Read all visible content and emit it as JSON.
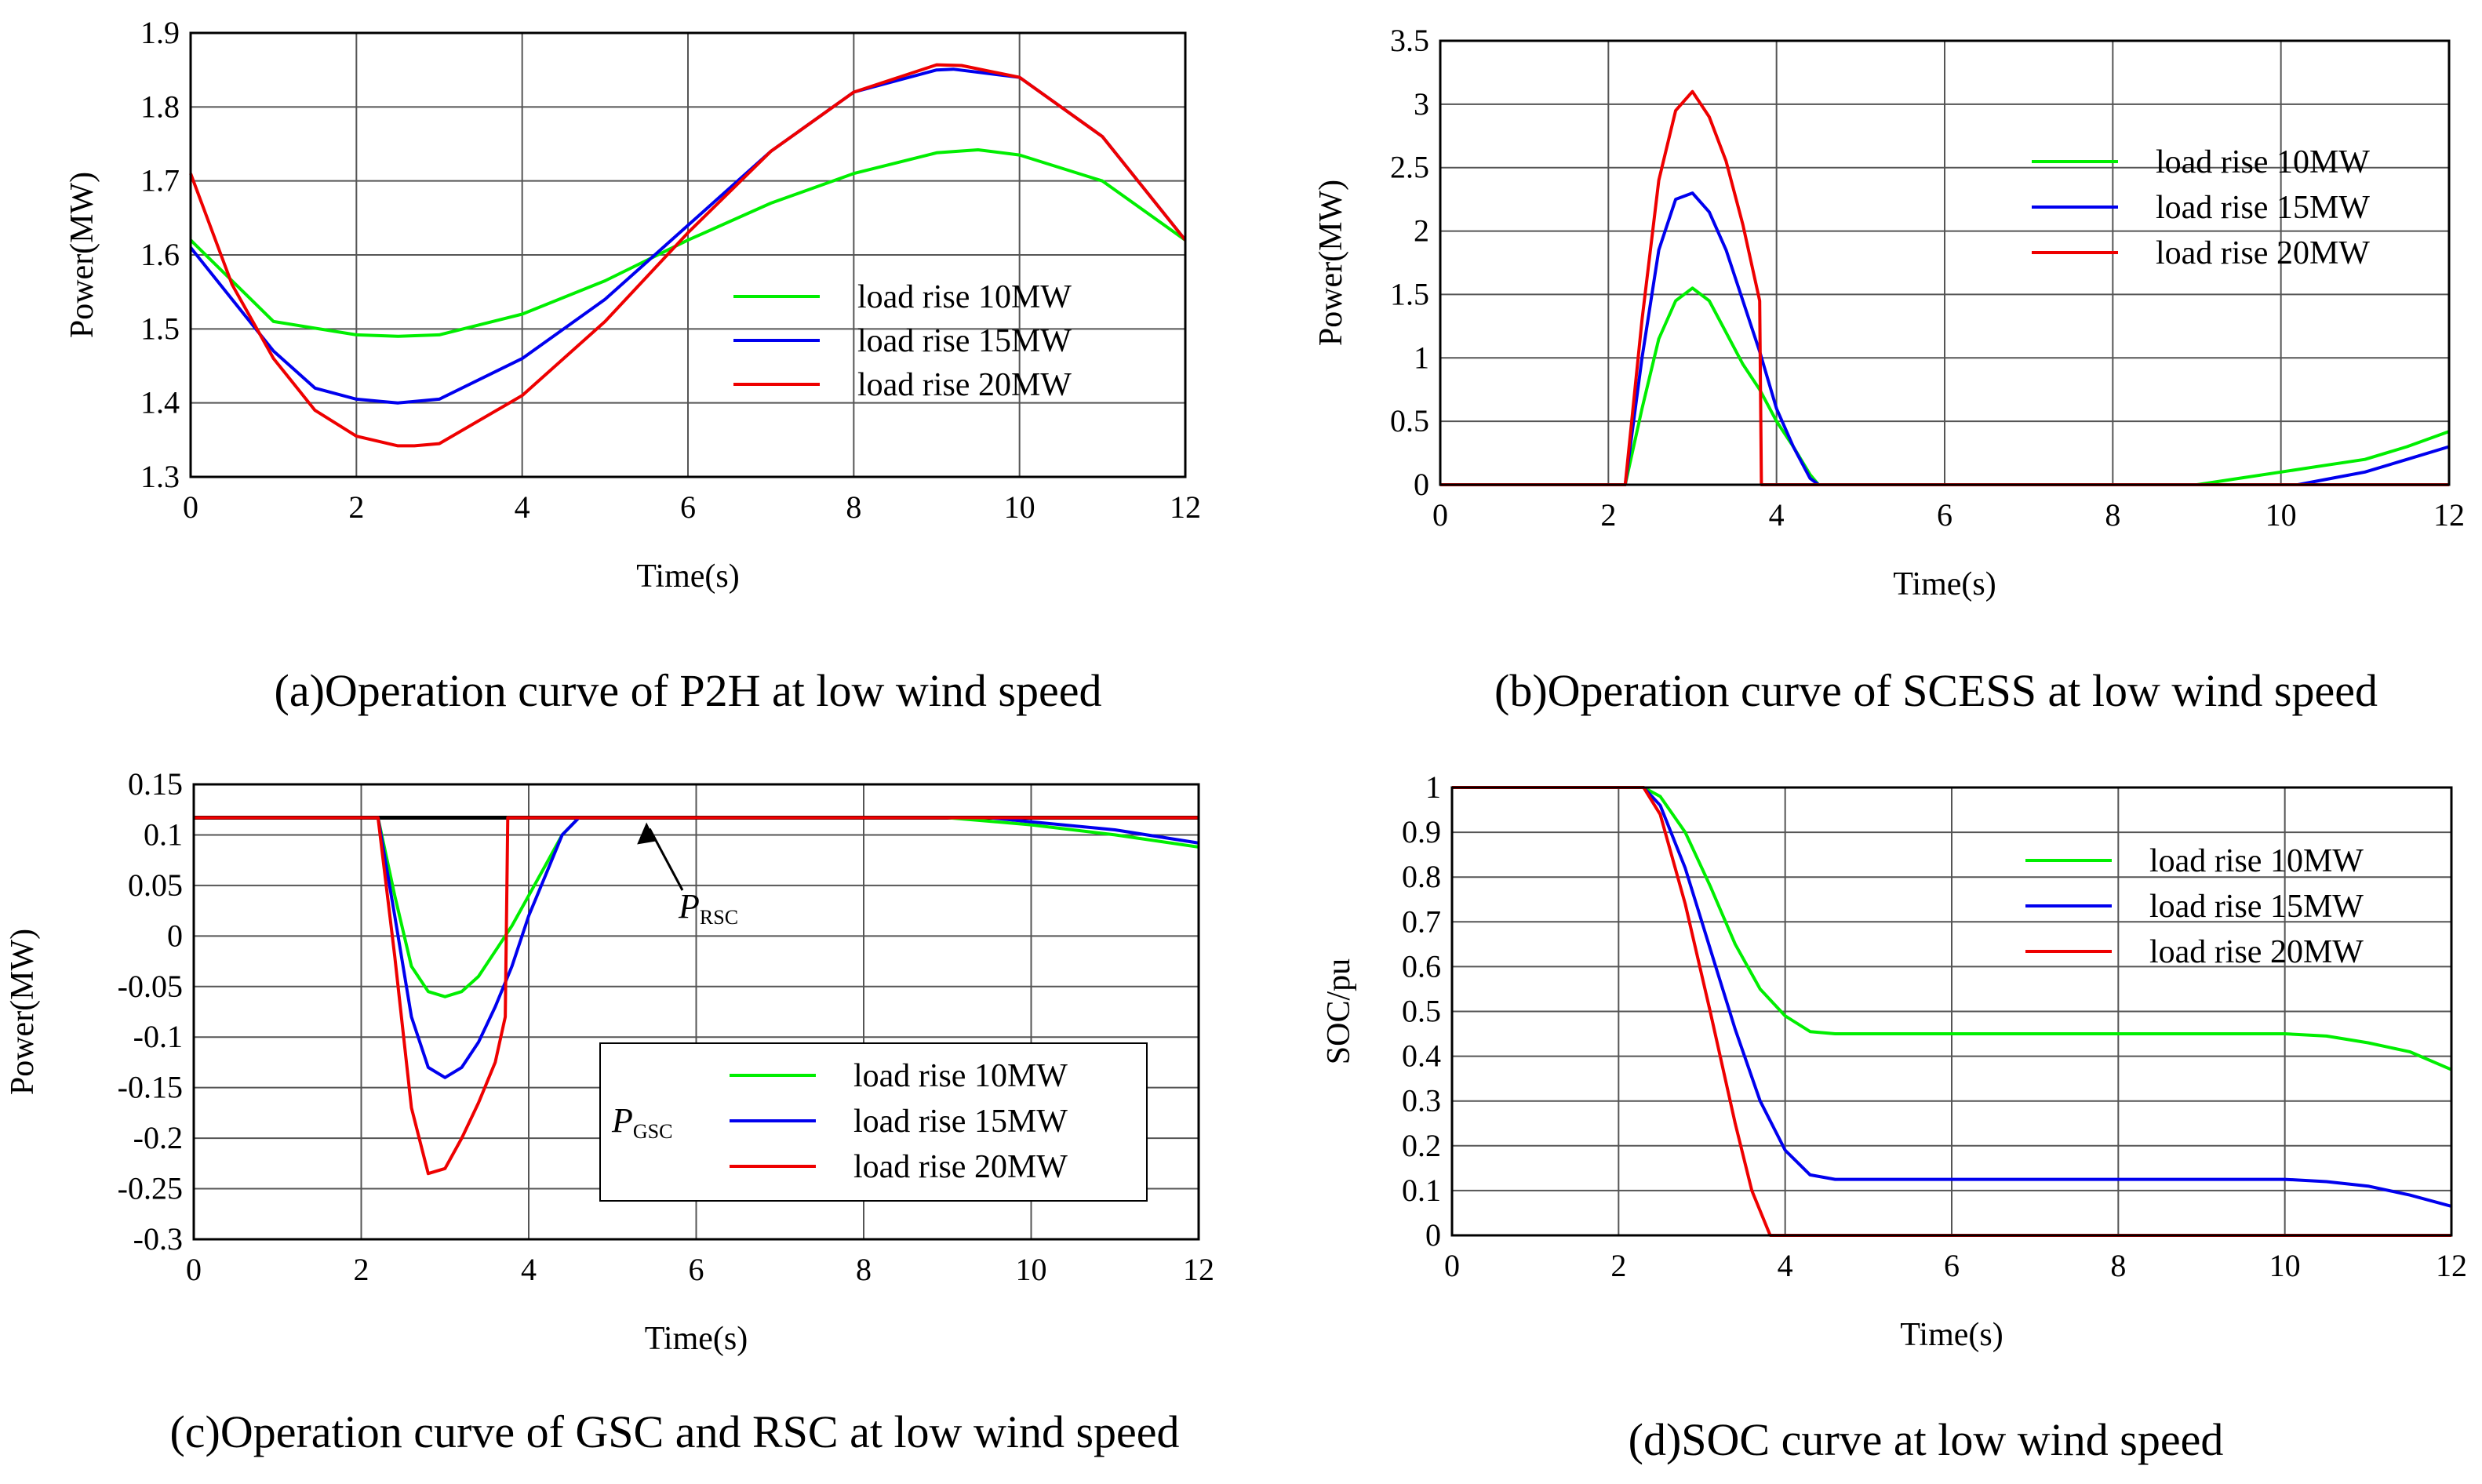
{
  "chart_data": [
    {
      "id": "a",
      "type": "line",
      "caption": "(a)Operation curve of P2H at low wind speed",
      "xlabel": "Time(s)",
      "ylabel": "Power(MW)",
      "xlim": [
        0,
        12
      ],
      "ylim": [
        1.3,
        1.9
      ],
      "xticks": [
        "0",
        "2",
        "4",
        "6",
        "8",
        "10",
        "12"
      ],
      "yticks": [
        "1.3",
        "1.4",
        "1.5",
        "1.6",
        "1.7",
        "1.8",
        "1.9"
      ],
      "grid": true,
      "legend_position": "center-right",
      "series": [
        {
          "name": "load rise 10MW",
          "color": "#00ee00",
          "x": [
            0,
            1,
            2,
            2.5,
            3,
            4,
            5,
            6,
            7,
            8,
            9,
            9.5,
            10,
            11,
            12
          ],
          "y": [
            1.62,
            1.51,
            1.492,
            1.49,
            1.492,
            1.52,
            1.565,
            1.62,
            1.67,
            1.71,
            1.738,
            1.742,
            1.735,
            1.7,
            1.62
          ]
        },
        {
          "name": "load rise 15MW",
          "color": "#0000ee",
          "x": [
            0,
            0.5,
            1,
            1.5,
            2,
            2.5,
            3,
            4,
            5,
            6,
            7,
            8,
            9,
            9.2,
            10,
            11,
            12
          ],
          "y": [
            1.61,
            1.54,
            1.47,
            1.42,
            1.405,
            1.4,
            1.405,
            1.46,
            1.54,
            1.64,
            1.74,
            1.82,
            1.85,
            1.851,
            1.84,
            1.76,
            1.62
          ]
        },
        {
          "name": "load rise 20MW",
          "color": "#ee0000",
          "x": [
            0,
            0.5,
            1,
            1.5,
            2,
            2.5,
            2.7,
            3,
            4,
            5,
            6,
            7,
            8,
            9,
            9.3,
            10,
            11,
            12
          ],
          "y": [
            1.71,
            1.56,
            1.46,
            1.39,
            1.355,
            1.342,
            1.342,
            1.345,
            1.41,
            1.51,
            1.63,
            1.74,
            1.82,
            1.857,
            1.856,
            1.84,
            1.76,
            1.62
          ]
        }
      ]
    },
    {
      "id": "b",
      "type": "line",
      "caption": "(b)Operation curve of SCESS at low wind speed",
      "xlabel": "Time(s)",
      "ylabel": "Power(MW)",
      "xlim": [
        0,
        12
      ],
      "ylim": [
        0,
        3.5
      ],
      "xticks": [
        "0",
        "2",
        "4",
        "6",
        "8",
        "10",
        "12"
      ],
      "yticks": [
        "0",
        "0.5",
        "1",
        "1.5",
        "2",
        "2.5",
        "3",
        "3.5"
      ],
      "grid": true,
      "legend_position": "top-right",
      "series": [
        {
          "name": "load rise 10MW",
          "color": "#00ee00",
          "x": [
            0,
            2.2,
            2.4,
            2.6,
            2.8,
            3.0,
            3.2,
            3.4,
            3.6,
            3.8,
            4.0,
            4.2,
            4.4,
            4.5,
            9.0,
            9.5,
            10,
            10.5,
            11,
            11.5,
            12
          ],
          "y": [
            0,
            0,
            0.6,
            1.15,
            1.45,
            1.55,
            1.45,
            1.2,
            0.95,
            0.75,
            0.5,
            0.3,
            0.08,
            0,
            0,
            0.05,
            0.1,
            0.15,
            0.2,
            0.3,
            0.42
          ]
        },
        {
          "name": "load rise 15MW",
          "color": "#0000ee",
          "x": [
            0,
            2.2,
            2.4,
            2.6,
            2.8,
            3.0,
            3.2,
            3.4,
            3.6,
            3.8,
            4.0,
            4.2,
            4.4,
            4.5,
            10.2,
            10.6,
            11,
            11.5,
            12
          ],
          "y": [
            0,
            0,
            1.0,
            1.85,
            2.25,
            2.3,
            2.15,
            1.85,
            1.45,
            1.05,
            0.6,
            0.3,
            0.05,
            0,
            0,
            0.05,
            0.1,
            0.2,
            0.3
          ]
        },
        {
          "name": "load rise 20MW",
          "color": "#ee0000",
          "x": [
            0,
            2.2,
            2.4,
            2.6,
            2.8,
            3.0,
            3.2,
            3.4,
            3.6,
            3.8,
            3.82,
            12
          ],
          "y": [
            0,
            0,
            1.3,
            2.4,
            2.95,
            3.1,
            2.9,
            2.55,
            2.05,
            1.45,
            0,
            0
          ]
        }
      ]
    },
    {
      "id": "c",
      "type": "line",
      "caption": "(c)Operation curve of GSC and RSC at low wind speed",
      "xlabel": "Time(s)",
      "ylabel": "Power(MW)",
      "xlim": [
        0,
        12
      ],
      "ylim": [
        -0.3,
        0.15
      ],
      "xticks": [
        "0",
        "2",
        "4",
        "6",
        "8",
        "10",
        "12"
      ],
      "yticks": [
        "-0.3",
        "-0.25",
        "-0.2",
        "-0.15",
        "-0.1",
        "-0.05",
        "0",
        "0.05",
        "0.1",
        "0.15"
      ],
      "grid": true,
      "legend_position": "bottom-center",
      "annotations": [
        {
          "main": "P",
          "sub": "RSC",
          "target_x": 5.5,
          "target_y": 0.117
        },
        {
          "main": "P",
          "sub": "GSC"
        }
      ],
      "series": [
        {
          "name": "P_RSC",
          "color": "#000000",
          "x": [
            0,
            12
          ],
          "y": [
            0.117,
            0.117
          ]
        },
        {
          "name": "load rise 10MW",
          "color": "#00ee00",
          "x": [
            0,
            2.2,
            2.4,
            2.6,
            2.8,
            3.0,
            3.2,
            3.4,
            3.6,
            3.8,
            4.0,
            4.2,
            4.4,
            4.6,
            9.0,
            10,
            11,
            12
          ],
          "y": [
            0.117,
            0.117,
            0.04,
            -0.03,
            -0.055,
            -0.06,
            -0.055,
            -0.04,
            -0.015,
            0.01,
            0.04,
            0.07,
            0.1,
            0.117,
            0.117,
            0.11,
            0.1,
            0.088
          ]
        },
        {
          "name": "load rise 15MW",
          "color": "#0000ee",
          "x": [
            0,
            2.2,
            2.4,
            2.6,
            2.8,
            3.0,
            3.2,
            3.4,
            3.6,
            3.8,
            4.0,
            4.2,
            4.4,
            4.6,
            9.5,
            10,
            11,
            12
          ],
          "y": [
            0.117,
            0.117,
            0.02,
            -0.08,
            -0.13,
            -0.14,
            -0.13,
            -0.105,
            -0.07,
            -0.03,
            0.02,
            0.06,
            0.1,
            0.117,
            0.117,
            0.113,
            0.105,
            0.092
          ]
        },
        {
          "name": "load rise 20MW",
          "color": "#ee0000",
          "x": [
            0,
            2.2,
            2.4,
            2.6,
            2.8,
            3.0,
            3.2,
            3.4,
            3.6,
            3.72,
            3.75,
            12
          ],
          "y": [
            0.117,
            0.117,
            -0.02,
            -0.17,
            -0.235,
            -0.23,
            -0.2,
            -0.165,
            -0.125,
            -0.08,
            0.117,
            0.117
          ]
        }
      ]
    },
    {
      "id": "d",
      "type": "line",
      "caption": "(d)SOC curve at low wind speed",
      "xlabel": "Time(s)",
      "ylabel": "SOC/pu",
      "xlim": [
        0,
        12
      ],
      "ylim": [
        0,
        1
      ],
      "xticks": [
        "0",
        "2",
        "4",
        "6",
        "8",
        "10",
        "12"
      ],
      "yticks": [
        "0",
        "0.1",
        "0.2",
        "0.3",
        "0.4",
        "0.5",
        "0.6",
        "0.7",
        "0.8",
        "0.9",
        "1"
      ],
      "grid": true,
      "legend_position": "top-right",
      "series": [
        {
          "name": "load rise 10MW",
          "color": "#00ee00",
          "x": [
            0,
            2.3,
            2.5,
            2.8,
            3.1,
            3.4,
            3.7,
            4.0,
            4.3,
            4.6,
            10,
            10.5,
            11,
            11.5,
            12
          ],
          "y": [
            1,
            1,
            0.98,
            0.9,
            0.78,
            0.65,
            0.55,
            0.49,
            0.455,
            0.45,
            0.45,
            0.445,
            0.43,
            0.41,
            0.37
          ]
        },
        {
          "name": "load rise 15MW",
          "color": "#0000ee",
          "x": [
            0,
            2.3,
            2.5,
            2.8,
            3.1,
            3.4,
            3.7,
            4.0,
            4.3,
            4.6,
            10,
            10.5,
            11,
            11.5,
            12
          ],
          "y": [
            1,
            1,
            0.96,
            0.82,
            0.64,
            0.46,
            0.3,
            0.19,
            0.135,
            0.125,
            0.125,
            0.12,
            0.11,
            0.09,
            0.065
          ]
        },
        {
          "name": "load rise 20MW",
          "color": "#ee0000",
          "x": [
            0,
            2.3,
            2.5,
            2.8,
            3.1,
            3.4,
            3.6,
            3.82,
            12
          ],
          "y": [
            1,
            1,
            0.94,
            0.74,
            0.5,
            0.25,
            0.1,
            0,
            0
          ]
        }
      ]
    }
  ]
}
